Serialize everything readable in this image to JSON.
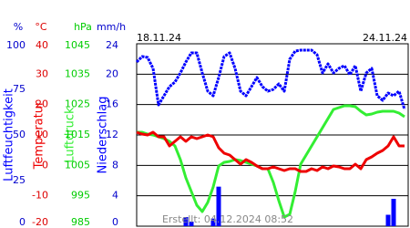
{
  "chart_data": {
    "type": "line",
    "date_labels": [
      "18.11.24",
      "24.11.24"
    ],
    "footer": "Erstellt: 04.12.2024 08:52",
    "grid": true,
    "series": [
      {
        "name": "Luftfeuchtigkeit",
        "unit": "%",
        "color": "#0000ff",
        "type": "line",
        "ylim": [
          0,
          100
        ],
        "yticks": [
          0,
          25,
          50,
          75,
          100
        ],
        "values": [
          90,
          93,
          92.5,
          86.5,
          66.5,
          71.5,
          76.5,
          79,
          84,
          90,
          95,
          95,
          84,
          74,
          71.5,
          81.5,
          93,
          95,
          86.5,
          74,
          71.5,
          76.5,
          81.5,
          76.5,
          74,
          75,
          78,
          74,
          91.5,
          96,
          96.5,
          96.5,
          96.5,
          94,
          84,
          89,
          84,
          86.5,
          88,
          83,
          88,
          74,
          84,
          86.5,
          71.5,
          69,
          73,
          71.5,
          74,
          64
        ]
      },
      {
        "name": "Temperatur",
        "unit": "°C",
        "color": "#ee0000",
        "type": "line",
        "ylim": [
          -20,
          40
        ],
        "yticks": [
          -20,
          -10,
          0,
          10,
          20,
          30,
          40
        ],
        "values": [
          10.9,
          10.3,
          10,
          10.9,
          9.4,
          9.4,
          6.4,
          7.9,
          9.4,
          7.9,
          9.4,
          8.8,
          9.4,
          10,
          9.4,
          5.8,
          4,
          3.4,
          1.9,
          0.4,
          1.9,
          1,
          -0.2,
          -1.1,
          -1.1,
          -0.5,
          -1.1,
          -1.7,
          -1.1,
          -1.1,
          -2,
          -2,
          -1.1,
          -1.7,
          -0.5,
          -1.1,
          -0.2,
          -0.5,
          -1.1,
          -1.1,
          0.4,
          -1.1,
          1.9,
          2.8,
          4,
          4.9,
          6.4,
          9.4,
          6.4,
          6.4
        ]
      },
      {
        "name": "Luftdruck",
        "unit": "hPa",
        "color": "#33ee33",
        "type": "line",
        "ylim": [
          985,
          1045
        ],
        "yticks": [
          985,
          995,
          1005,
          1015,
          1025,
          1035,
          1045
        ],
        "values": [
          1015.9,
          1015.9,
          1015.3,
          1015,
          1014.4,
          1013.8,
          1012.9,
          1011.4,
          1006.9,
          1000.9,
          996.4,
          991.9,
          989.8,
          992.8,
          997.9,
          1004.8,
          1006,
          1006.3,
          1006.9,
          1006.6,
          1006,
          1005.4,
          1004.8,
          1003.9,
          1003.9,
          999.4,
          993.4,
          988,
          988.9,
          996.4,
          1005.4,
          1008.4,
          1011.4,
          1014.4,
          1017.4,
          1020.4,
          1023.4,
          1024,
          1024.6,
          1024.6,
          1024.3,
          1022.8,
          1021.6,
          1021.9,
          1022.5,
          1022.8,
          1022.8,
          1022.8,
          1022.2,
          1021
        ]
      },
      {
        "name": "Niederschlag",
        "unit": "mm/h",
        "color": "#0000ff",
        "type": "bar",
        "ylim": [
          0,
          24
        ],
        "yticks": [
          0,
          4,
          8,
          12,
          16,
          20,
          24
        ],
        "values": [
          0,
          0,
          0,
          0,
          0,
          0,
          0,
          0,
          0,
          1.2,
          0.6,
          0,
          0,
          0,
          1,
          5.2,
          0,
          0,
          0,
          0,
          0,
          0,
          0,
          0,
          0,
          0,
          0,
          0,
          0,
          0,
          0,
          0,
          0,
          0,
          0,
          0,
          0,
          0,
          0,
          0,
          0,
          0,
          0,
          0,
          0,
          0,
          1.5,
          3.6,
          0,
          0
        ]
      }
    ]
  }
}
